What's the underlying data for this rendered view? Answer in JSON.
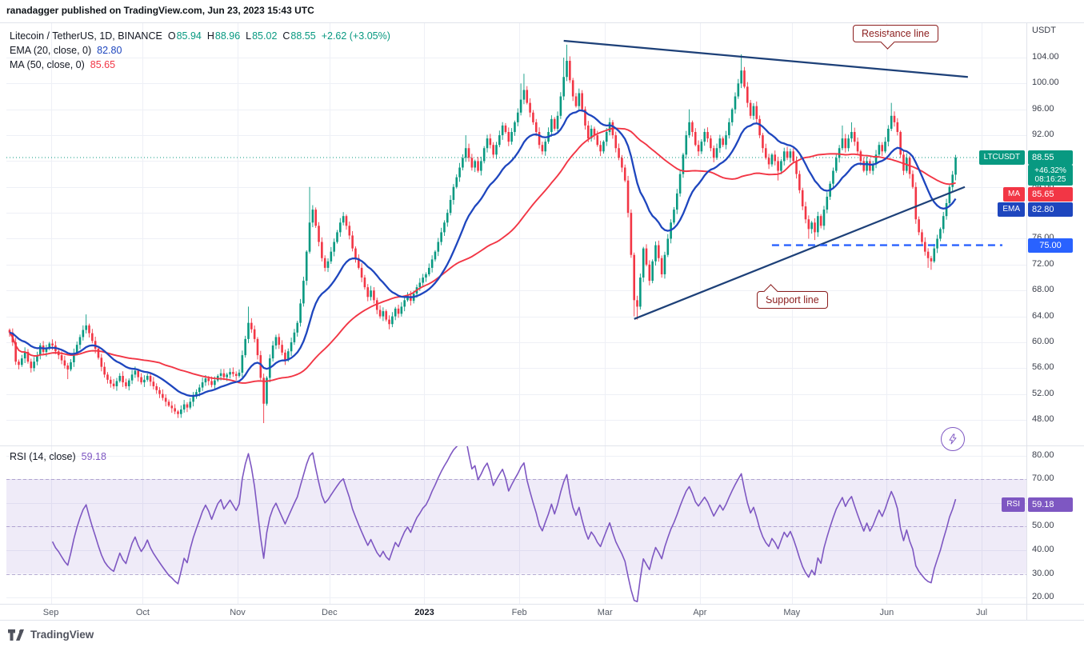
{
  "attribution": "ranadagger published on TradingView.com, Jun 23, 2023 15:43 UTC",
  "symbol_legend": {
    "title": "Litecoin / TetherUS, 1D, BINANCE",
    "o_label": "O",
    "o": "85.94",
    "h_label": "H",
    "h": "88.96",
    "l_label": "L",
    "l": "85.02",
    "c_label": "C",
    "c": "88.55",
    "change": "+2.62 (+3.05%)"
  },
  "indicators": {
    "ema_label": "EMA (20, close, 0)",
    "ema_value": "82.80",
    "ma_label": "MA (50, close, 0)",
    "ma_value": "85.65"
  },
  "rsi_legend": {
    "label": "RSI (14, close)",
    "value": "59.18"
  },
  "badges": {
    "symbol": {
      "tag": "LTCUSDT",
      "value": "88.55"
    },
    "countdown": {
      "change_pct": "+46.32%",
      "time": "08:16:25"
    },
    "ma": {
      "tag": "MA",
      "value": "85.65"
    },
    "ema": {
      "tag": "EMA",
      "value": "82.80"
    },
    "level": {
      "value": "75.00"
    },
    "rsi": {
      "tag": "RSI",
      "value": "59.18"
    }
  },
  "annotations": {
    "resistance": "Resistance line",
    "support": "Support line"
  },
  "axis": {
    "currency": "USDT",
    "price_ticks": [
      104,
      100,
      96,
      92,
      88,
      84,
      80,
      76,
      72,
      68,
      64,
      60,
      56,
      52,
      48
    ],
    "rsi_ticks": [
      80,
      70,
      60,
      50,
      40,
      30,
      20
    ]
  },
  "footer": {
    "logo_text": "TradingView"
  },
  "colors": {
    "up": "#089981",
    "down": "#f23645",
    "ema": "#1e46be",
    "ma": "#f23645",
    "rsi": "#7e57c2",
    "level": "#2962ff",
    "trendline": "#1d4078",
    "callout": "#8b1d1d"
  },
  "chart_data": {
    "type": "candlestick",
    "symbol": "LTCUSDT",
    "exchange": "BINANCE",
    "timeframe": "1D",
    "start_date": "2022-08-18",
    "end_date": "2023-06-23",
    "ylim": [
      44,
      110
    ],
    "last_candle": {
      "open": 85.94,
      "high": 88.96,
      "low": 85.02,
      "close": 88.55
    },
    "closes": [
      61.5,
      60.0,
      57.0,
      56.5,
      57.5,
      58.5,
      57.0,
      56.0,
      57.0,
      58.0,
      59.5,
      58.5,
      59.0,
      59.8,
      59.5,
      58.6,
      58.0,
      57.2,
      56.4,
      55.8,
      56.9,
      58.3,
      59.6,
      60.8,
      61.9,
      62.6,
      61.4,
      60.2,
      59.0,
      57.6,
      56.2,
      55.0,
      54.2,
      53.6,
      53.2,
      54.0,
      54.8,
      53.8,
      53.2,
      54.1,
      55.0,
      55.6,
      54.6,
      53.8,
      54.2,
      54.8,
      53.9,
      53.2,
      52.6,
      52.0,
      51.4,
      50.8,
      50.2,
      49.8,
      49.3,
      48.9,
      49.6,
      50.4,
      49.9,
      50.8,
      51.6,
      52.3,
      53.0,
      53.8,
      54.4,
      54.0,
      53.4,
      54.1,
      54.8,
      55.2,
      54.6,
      55.0,
      55.4,
      55.1,
      54.8,
      55.3,
      58.0,
      60.5,
      63.0,
      62.0,
      60.5,
      58.0,
      54.5,
      50.5,
      54.5,
      57.5,
      59.5,
      60.8,
      59.6,
      58.4,
      57.2,
      58.6,
      60.0,
      61.5,
      63.0,
      66.0,
      69.5,
      74.0,
      78.5,
      80.5,
      78.0,
      75.5,
      73.0,
      71.5,
      72.5,
      74.0,
      75.5,
      77.0,
      78.5,
      79.5,
      78.0,
      76.5,
      74.5,
      73.0,
      71.5,
      70.0,
      68.5,
      67.0,
      68.0,
      66.5,
      65.0,
      64.0,
      64.8,
      63.5,
      62.8,
      64.0,
      65.2,
      64.4,
      65.5,
      66.5,
      67.2,
      66.4,
      67.5,
      68.5,
      69.2,
      70.0,
      70.5,
      71.5,
      72.8,
      74.0,
      75.5,
      77.0,
      78.5,
      80.0,
      82.0,
      84.0,
      85.5,
      87.0,
      88.5,
      90.0,
      88.5,
      87.0,
      88.0,
      86.5,
      88.0,
      90.0,
      91.5,
      90.5,
      89.0,
      90.5,
      92.0,
      93.5,
      92.5,
      91.0,
      92.5,
      94.0,
      95.5,
      97.5,
      99.0,
      97.0,
      95.5,
      94.0,
      92.5,
      90.5,
      89.5,
      91.0,
      92.5,
      94.5,
      93.0,
      95.0,
      98.0,
      101.0,
      103.5,
      100.5,
      98.0,
      96.5,
      98.5,
      96.0,
      93.5,
      91.5,
      93.0,
      92.0,
      90.5,
      89.5,
      91.0,
      92.5,
      94.0,
      92.0,
      90.0,
      88.5,
      87.0,
      85.0,
      80.0,
      73.5,
      66.5,
      65.5,
      70.0,
      74.5,
      72.0,
      69.5,
      72.5,
      75.0,
      73.0,
      70.5,
      73.5,
      76.0,
      78.5,
      80.5,
      83.0,
      86.0,
      89.0,
      92.0,
      94.0,
      92.5,
      90.5,
      89.5,
      91.0,
      92.5,
      91.5,
      90.0,
      88.5,
      90.0,
      91.5,
      90.5,
      92.0,
      94.0,
      96.0,
      98.0,
      100.0,
      102.0,
      99.5,
      97.0,
      95.0,
      96.5,
      94.5,
      92.0,
      90.0,
      88.5,
      87.5,
      89.0,
      88.0,
      86.5,
      88.0,
      89.5,
      88.5,
      89.5,
      88.0,
      86.0,
      83.5,
      81.0,
      79.0,
      77.5,
      78.5,
      77.0,
      79.5,
      78.0,
      80.5,
      82.5,
      84.5,
      86.5,
      88.5,
      90.0,
      91.5,
      90.0,
      91.5,
      92.5,
      91.0,
      89.5,
      88.0,
      86.5,
      88.0,
      86.5,
      87.5,
      89.0,
      90.5,
      89.5,
      91.0,
      93.0,
      95.0,
      94.0,
      92.5,
      89.0,
      86.5,
      88.5,
      86.0,
      84.0,
      79.0,
      77.0,
      75.5,
      74.0,
      73.0,
      72.5,
      74.5,
      76.0,
      77.5,
      79.5,
      81.5,
      84.0,
      85.9,
      88.55
    ],
    "wick_overrides": {
      "19": {
        "low": 54.3
      },
      "25": {
        "high": 64.3
      },
      "55": {
        "low": 48.3
      },
      "78": {
        "high": 65.5
      },
      "83": {
        "low": 47.5
      },
      "98": {
        "high": 84.0
      },
      "124": {
        "low": 62.0
      },
      "149": {
        "high": 92.0
      },
      "167": {
        "high": 100.0
      },
      "168": {
        "high": 101.5
      },
      "181": {
        "high": 104.0
      },
      "182": {
        "high": 106.0
      },
      "204": {
        "low": 64.0
      },
      "205": {
        "low": 63.5
      },
      "222": {
        "high": 96.0
      },
      "239": {
        "high": 104.5
      },
      "251": {
        "low": 85.0
      },
      "261": {
        "low": 76.0
      },
      "263": {
        "low": 75.8
      },
      "272": {
        "high": 93.5
      },
      "275": {
        "high": 94.0
      },
      "288": {
        "high": 97.0
      },
      "300": {
        "low": 71.5
      },
      "301": {
        "low": 71.2
      },
      "309": {
        "high": 88.96,
        "low": 85.02
      }
    },
    "overlays": {
      "ema": {
        "period": 20,
        "last": 82.8
      },
      "ma": {
        "period": 50,
        "last": 85.65
      }
    },
    "trendlines": [
      {
        "name": "resistance",
        "from": {
          "index": 181,
          "price": 106.6
        },
        "to": {
          "index": 313,
          "price": 101.0
        }
      },
      {
        "name": "support",
        "from": {
          "index": 204,
          "price": 63.6
        },
        "to": {
          "index": 312,
          "price": 84.0
        }
      }
    ],
    "horizontal_level": {
      "price": 75.0,
      "style": "dashed",
      "start_index": 249
    },
    "price_line": {
      "price": 88.55
    },
    "rsi": {
      "period": 14,
      "bands": [
        70,
        30
      ],
      "mid": 50,
      "band_fill": "rgba(126,87,194,0.12)",
      "last": 59.18
    },
    "months": [
      {
        "label": "Sep",
        "index": 14
      },
      {
        "label": "Oct",
        "index": 44
      },
      {
        "label": "Nov",
        "index": 75
      },
      {
        "label": "Dec",
        "index": 105
      },
      {
        "label": "2023",
        "index": 136,
        "bold": true
      },
      {
        "label": "Feb",
        "index": 167
      },
      {
        "label": "Mar",
        "index": 195
      },
      {
        "label": "Apr",
        "index": 226
      },
      {
        "label": "May",
        "index": 256
      },
      {
        "label": "Jun",
        "index": 287
      },
      {
        "label": "Jul",
        "index": 318
      }
    ]
  }
}
